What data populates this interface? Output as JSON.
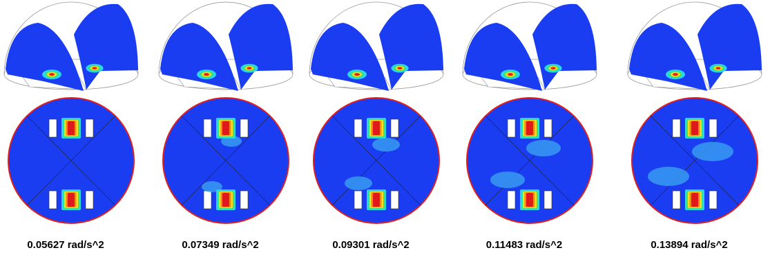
{
  "panels": [
    {
      "label": "0.05627 rad/s^2"
    },
    {
      "label": "0.07349 rad/s^2"
    },
    {
      "label": "0.09301 rad/s^2"
    },
    {
      "label": "0.11483 rad/s^2"
    },
    {
      "label": "0.13894 rad/s^2"
    }
  ]
}
